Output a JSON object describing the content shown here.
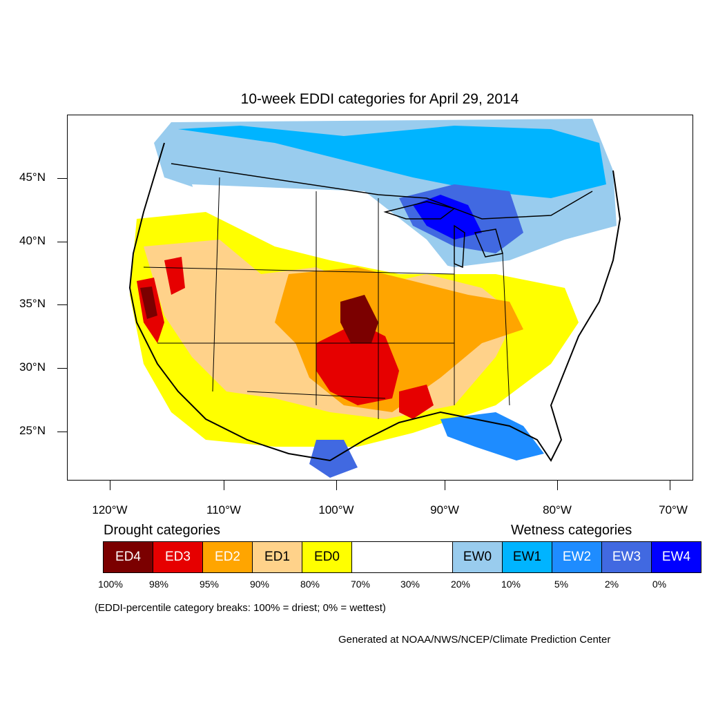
{
  "title": "10-week EDDI categories for April 29, 2014",
  "map": {
    "latitude_labels": [
      "45°N",
      "40°N",
      "35°N",
      "30°N",
      "25°N"
    ],
    "longitude_labels": [
      "120°W",
      "110°W",
      "100°W",
      "90°W",
      "80°W",
      "70°W"
    ],
    "colors": {
      "ED4": "#7b0000",
      "ED3": "#e60000",
      "ED2": "#ffa500",
      "ED1": "#ffd28a",
      "ED0": "#ffff00",
      "neutral": "#ffffff",
      "EW0": "#99ccee",
      "EW1": "#00b4ff",
      "EW2": "#1e8cff",
      "EW3": "#4169e1",
      "EW4": "#0000ff"
    }
  },
  "legend": {
    "drought_heading": "Drought categories",
    "wetness_heading": "Wetness categories",
    "categories": [
      {
        "label": "ED4",
        "color": "#7b0000",
        "text_color": "#ffffff"
      },
      {
        "label": "ED3",
        "color": "#e60000",
        "text_color": "#ffffff"
      },
      {
        "label": "ED2",
        "color": "#ffa500",
        "text_color": "#ffffff"
      },
      {
        "label": "ED1",
        "color": "#ffd28a",
        "text_color": "#000000"
      },
      {
        "label": "ED0",
        "color": "#ffff00",
        "text_color": "#000000"
      },
      {
        "label": "",
        "color": "#ffffff",
        "text_color": "#000000"
      },
      {
        "label": "EW0",
        "color": "#99ccee",
        "text_color": "#000000"
      },
      {
        "label": "EW1",
        "color": "#00b4ff",
        "text_color": "#000000"
      },
      {
        "label": "EW2",
        "color": "#1e8cff",
        "text_color": "#ffffff"
      },
      {
        "label": "EW3",
        "color": "#4169e1",
        "text_color": "#ffffff"
      },
      {
        "label": "EW4",
        "color": "#0000ff",
        "text_color": "#ffffff"
      }
    ],
    "breaks": [
      "100%",
      "98%",
      "95%",
      "90%",
      "80%",
      "70%",
      "30%",
      "20%",
      "10%",
      "5%",
      "2%",
      "0%"
    ],
    "note": "(EDDI-percentile category breaks: 100% = driest; 0% = wettest)"
  },
  "credit": "Generated at NOAA/NWS/NCEP/Climate Prediction Center"
}
